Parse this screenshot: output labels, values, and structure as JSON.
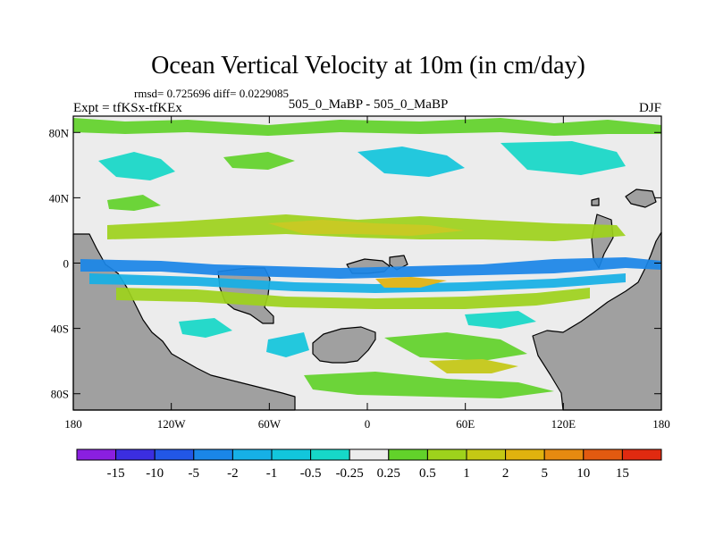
{
  "chart_data": {
    "type": "heatmap",
    "title": "Ocean Vertical Velocity at 10m (in cm/day)",
    "stats_line": "rmsd= 0.725696 diff= 0.0229085",
    "experiment_label": "Expt = tfKSx-tfKEx",
    "center_label": "505_0_MaBP - 505_0_MaBP",
    "season_label": "DJF",
    "xlim": [
      -180,
      180
    ],
    "ylim": [
      -90,
      90
    ],
    "x_ticks": [
      {
        "value": -180,
        "label": "180"
      },
      {
        "value": -120,
        "label": "120W"
      },
      {
        "value": -60,
        "label": "60W"
      },
      {
        "value": 0,
        "label": "0"
      },
      {
        "value": 60,
        "label": "60E"
      },
      {
        "value": 120,
        "label": "120E"
      },
      {
        "value": 180,
        "label": "180"
      }
    ],
    "y_ticks": [
      {
        "value": 80,
        "label": "80N"
      },
      {
        "value": 40,
        "label": "40N"
      },
      {
        "value": 0,
        "label": "0"
      },
      {
        "value": -40,
        "label": "40S"
      },
      {
        "value": -80,
        "label": "80S"
      }
    ],
    "colorbar": {
      "colors": [
        "#8a1fe0",
        "#3b2ee0",
        "#2257e6",
        "#1a86e8",
        "#16b0e6",
        "#12c6dc",
        "#16d8c8",
        "#ececec",
        "#62d22a",
        "#9ed21c",
        "#c4c814",
        "#e0b20e",
        "#e68a10",
        "#e25a10",
        "#e02a10"
      ],
      "labels": [
        "-15",
        "-10",
        "-5",
        "-2",
        "-1",
        "-0.5",
        "-0.25",
        "0.25",
        "0.5",
        "1",
        "2",
        "5",
        "10",
        "15"
      ]
    },
    "land_color": "#a0a0a0",
    "ocean_color": "#ececec"
  }
}
